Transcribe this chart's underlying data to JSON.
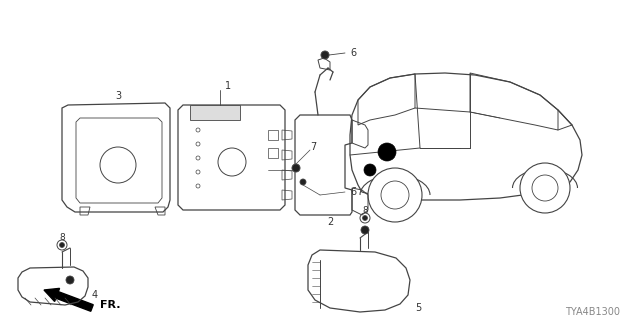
{
  "bg_color": "#ffffff",
  "line_color": "#444444",
  "label_color": "#333333",
  "diagram_code": "TYA4B1300",
  "figsize": [
    6.4,
    3.2
  ],
  "dpi": 100
}
